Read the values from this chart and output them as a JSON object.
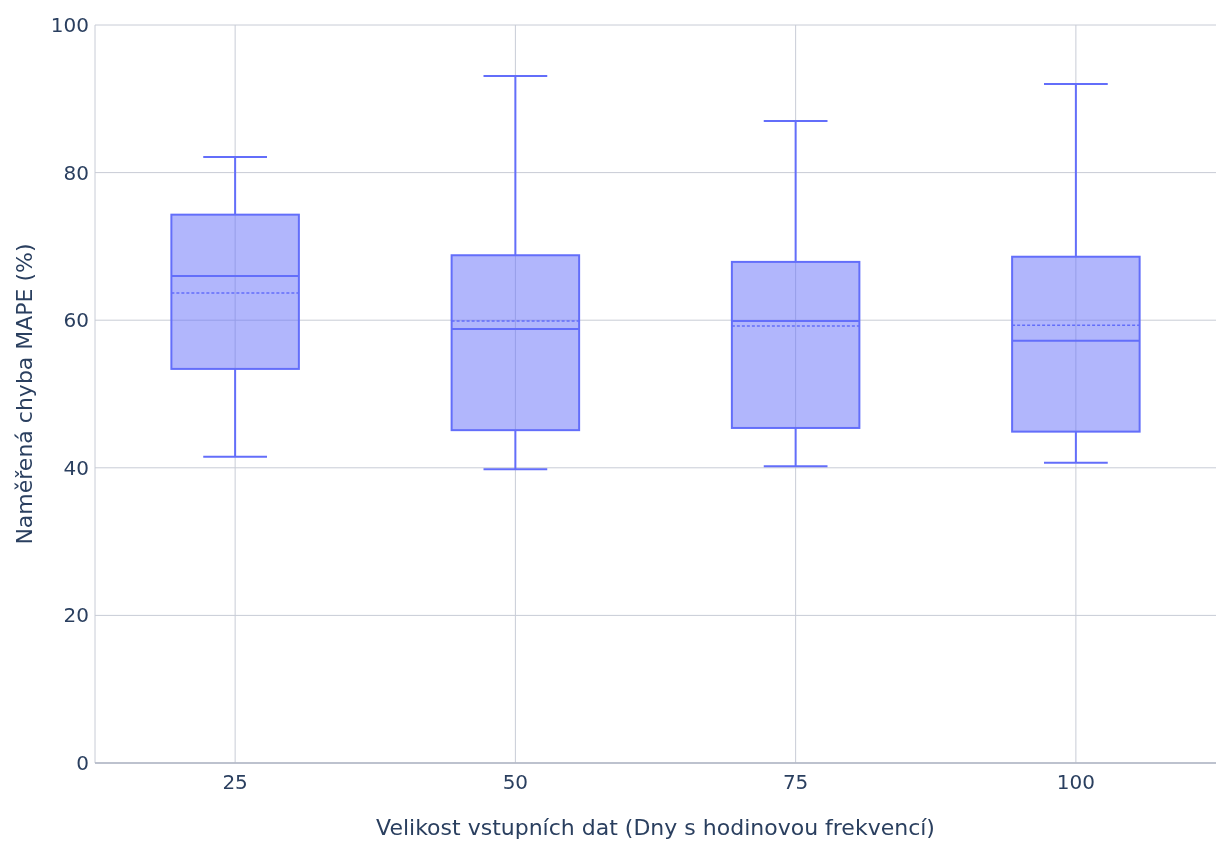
{
  "chart_data": {
    "type": "box",
    "xlabel": "Velikost vstupních dat (Dny s hodinovou frekvencí)",
    "ylabel": "Naměřená chyba MAPE (%)",
    "categories": [
      "25",
      "50",
      "75",
      "100"
    ],
    "ylim": [
      0,
      100
    ],
    "yticks": [
      0,
      20,
      40,
      60,
      80,
      100
    ],
    "grid": true,
    "series": [
      {
        "color": "#636efa",
        "boxes": [
          {
            "low": 41.5,
            "q1": 53.4,
            "median": 66.0,
            "q3": 74.3,
            "high": 82.1,
            "mean": 63.7
          },
          {
            "low": 39.8,
            "q1": 45.1,
            "median": 58.8,
            "q3": 68.8,
            "high": 93.1,
            "mean": 59.9
          },
          {
            "low": 40.2,
            "q1": 45.4,
            "median": 59.9,
            "q3": 67.9,
            "high": 87.0,
            "mean": 59.2
          },
          {
            "low": 40.7,
            "q1": 44.9,
            "median": 57.2,
            "q3": 68.6,
            "high": 92.0,
            "mean": 59.3
          }
        ]
      }
    ]
  }
}
